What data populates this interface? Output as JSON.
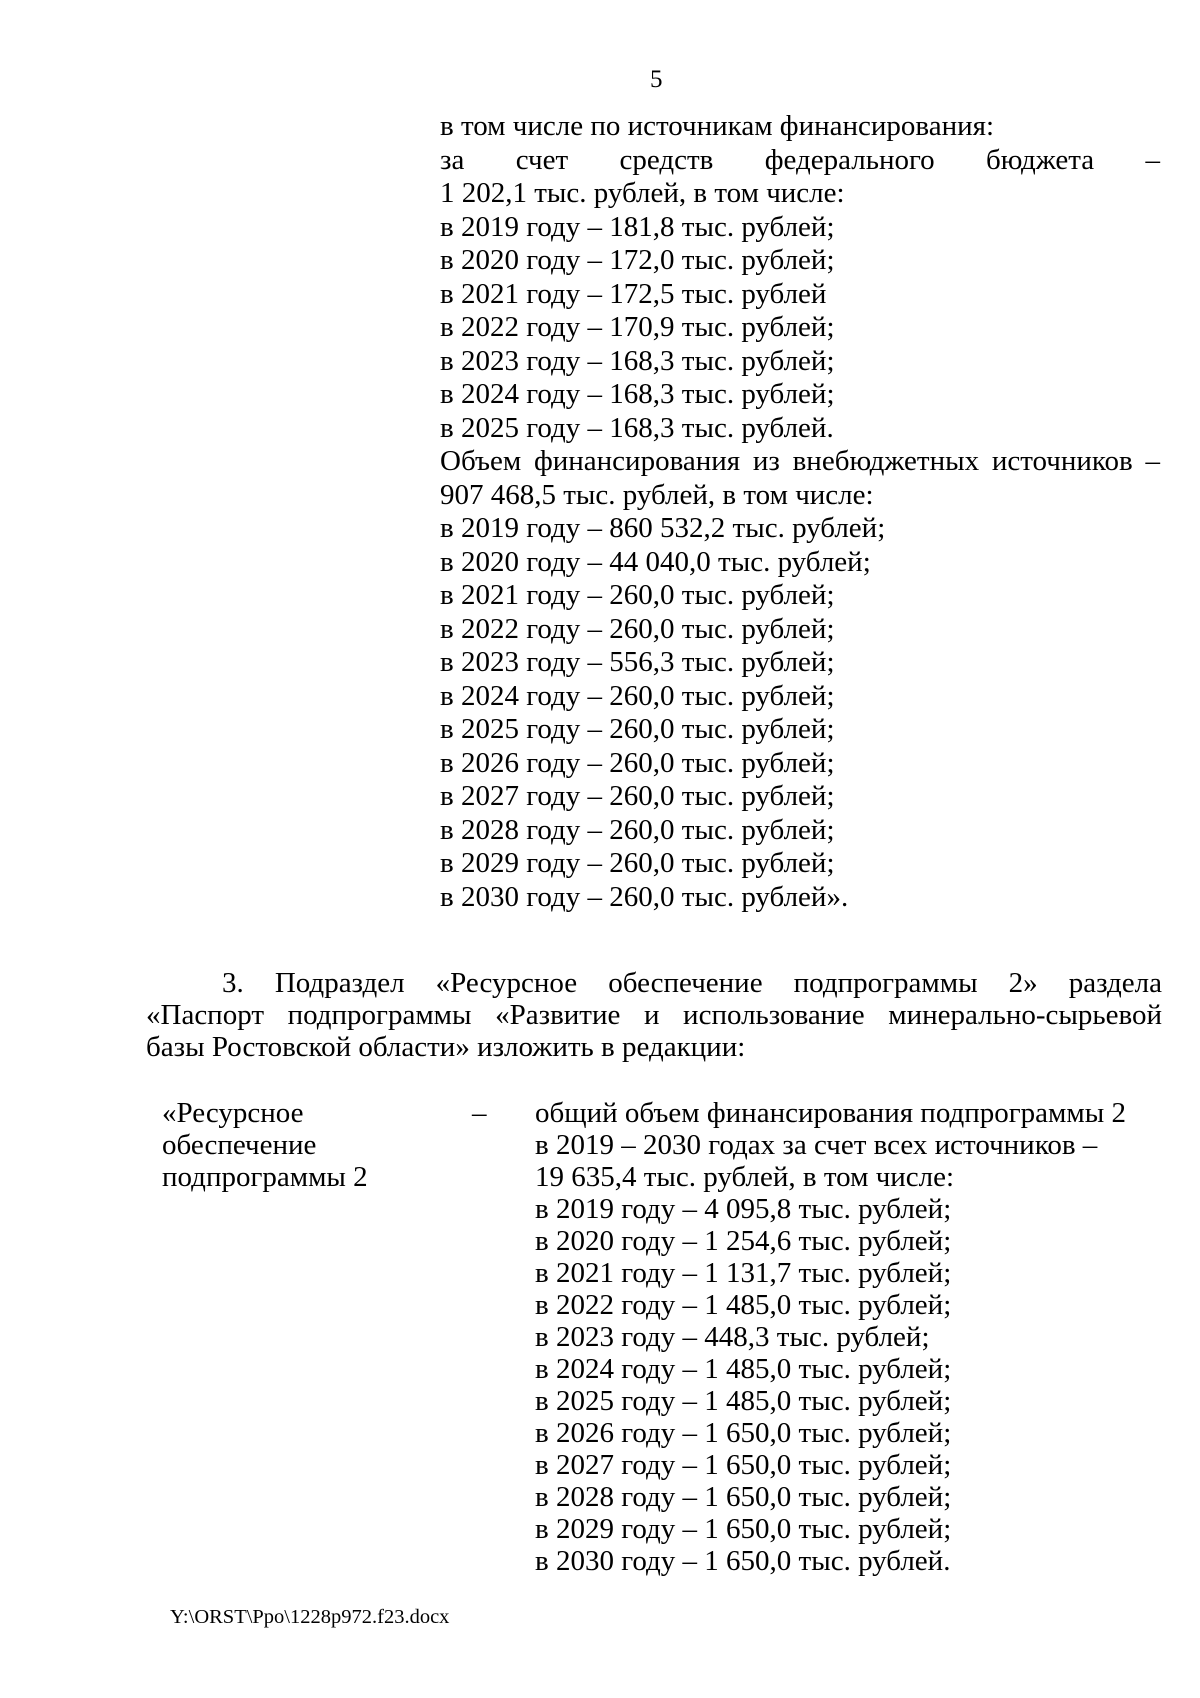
{
  "page": {
    "number": "5"
  },
  "top_block": {
    "lines": [
      "в том числе по источникам финансирования:",
      "за счет средств федерального бюджета –",
      "1 202,1 тыс. рублей, в том числе:",
      "в 2019 году – 181,8 тыс. рублей;",
      "в 2020 году – 172,0 тыс. рублей;",
      "в 2021 году – 172,5 тыс. рублей",
      "в 2022 году – 170,9 тыс. рублей;",
      "в 2023 году – 168,3 тыс. рублей;",
      "в 2024 году – 168,3 тыс. рублей;",
      "в 2025 году – 168,3 тыс. рублей.",
      "Объем финансирования из внебюджетных источников –",
      "907 468,5 тыс. рублей, в том числе:",
      "в 2019 году – 860 532,2 тыс. рублей;",
      "в 2020 году – 44 040,0 тыс. рублей;",
      "в 2021 году – 260,0 тыс. рублей;",
      "в 2022 году – 260,0 тыс. рублей;",
      "в 2023 году – 556,3 тыс. рублей;",
      "в 2024 году – 260,0 тыс. рублей;",
      "в 2025 году – 260,0 тыс. рублей;",
      "в 2026 году – 260,0 тыс. рублей;",
      "в 2027 году – 260,0 тыс. рублей;",
      "в 2028 году – 260,0 тыс. рублей;",
      "в 2029 году – 260,0 тыс. рублей;",
      "в 2030 году – 260,0 тыс. рублей»."
    ]
  },
  "section3": {
    "lines": [
      "3. Подраздел «Ресурсное обеспечение подпрограммы 2» раздела",
      "«Паспорт подпрограммы «Развитие и использование минерально-сырьевой",
      "базы Ростовской области» изложить в редакции:"
    ]
  },
  "resource_block": {
    "label_lines": [
      "«Ресурсное",
      "обеспечение",
      "подпрограммы 2"
    ],
    "dash": "–",
    "value_lines": [
      "общий объем финансирования подпрограммы 2",
      "в 2019 – 2030 годах за счет всех источников –",
      "19 635,4 тыс. рублей, в том числе:",
      "в 2019 году – 4 095,8 тыс. рублей;",
      "в 2020 году – 1 254,6 тыс. рублей;",
      "в 2021 году – 1 131,7 тыс. рублей;",
      "в 2022 году – 1 485,0 тыс. рублей;",
      "в 2023 году – 448,3 тыс. рублей;",
      "в 2024 году – 1 485,0 тыс. рублей;",
      "в 2025 году – 1 485,0 тыс. рублей;",
      "в 2026 году – 1 650,0 тыс. рублей;",
      "в 2027 году – 1 650,0 тыс. рублей;",
      "в 2028 году – 1 650,0 тыс. рублей;",
      "в 2029 году – 1 650,0 тыс. рублей;",
      "в 2030 году – 1 650,0 тыс. рублей."
    ]
  },
  "footer": {
    "file_path": "Y:\\ORST\\Ppo\\1228p972.f23.docx"
  }
}
